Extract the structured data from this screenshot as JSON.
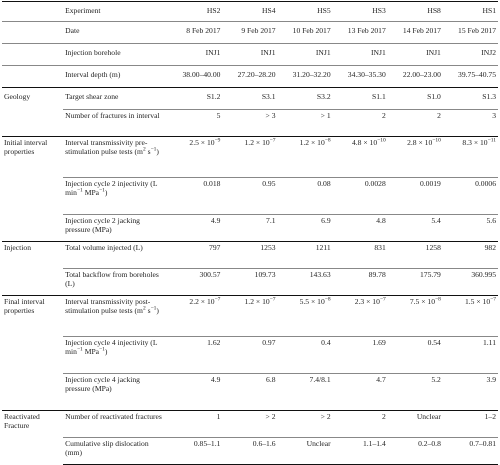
{
  "columns": [
    "HS2",
    "HS4",
    "HS5",
    "HS3",
    "HS8",
    "HS1"
  ],
  "rows": [
    {
      "id": "experiment",
      "category": "",
      "param": "Experiment",
      "values": [
        "HS2",
        "HS4",
        "HS5",
        "HS3",
        "HS8",
        "HS1"
      ]
    },
    {
      "id": "date",
      "category": "",
      "param": "Date",
      "values": [
        "8 Feb 2017",
        "9 Feb 2017",
        "10 Feb 2017",
        "13 Feb 2017",
        "14 Feb 2017",
        "15 Feb 2017"
      ]
    },
    {
      "id": "borehole",
      "category": "",
      "param": "Injection borehole",
      "values": [
        "INJ1",
        "INJ1",
        "INJ1",
        "INJ1",
        "INJ1",
        "INJ2"
      ]
    },
    {
      "id": "depth",
      "category": "",
      "param": "Interval depth (m)",
      "values": [
        "38.00–40.00",
        "27.20–28.20",
        "31.20–32.20",
        "34.30–35.30",
        "22.00–23.00",
        "39.75–40.75"
      ]
    },
    {
      "id": "shear_zone",
      "category": "Geology",
      "param": "Target shear zone",
      "values": [
        "S1.2",
        "S3.1",
        "S3.2",
        "S1.1",
        "S1.0",
        "S1.3"
      ]
    },
    {
      "id": "fractures",
      "category": "",
      "param": "Number of fractures in interval",
      "values": [
        "5",
        "> 3",
        "> 1",
        "2",
        "2",
        "3"
      ]
    },
    {
      "id": "init_transmissivity",
      "category": "Initial interval properties",
      "param_html": "Interval transmissivity pre-stimulation pulse tests (m<sup>2</sup> s<sup>−1</sup>)",
      "values_html": [
        "2.5 × 10<sup>−9</sup>",
        "1.2 × 10<sup>−7</sup>",
        "1.2 × 10<sup>−8</sup>",
        "4.8 × 10<sup>−10</sup>",
        "2.8 × 10<sup>−10</sup>",
        "8.3 × 10<sup>−11</sup>"
      ]
    },
    {
      "id": "cycle2_injectivity",
      "category": "",
      "param_html": "Injection cycle 2 injectivity (L min<sup>−1</sup> MPa<sup>−1</sup>)",
      "values": [
        "0.018",
        "0.95",
        "0.08",
        "0.0028",
        "0.0019",
        "0.0006"
      ]
    },
    {
      "id": "cycle2_jacking",
      "category": "",
      "param": "Injection cycle 2 jacking pressure (MPa)",
      "values": [
        "4.9",
        "7.1",
        "6.9",
        "4.8",
        "5.4",
        "5.6"
      ]
    },
    {
      "id": "volume_injected",
      "category": "Injection",
      "param": "Total volume injected (L)",
      "values": [
        "797",
        "1253",
        "1211",
        "831",
        "1258",
        "982"
      ]
    },
    {
      "id": "backflow",
      "category": "",
      "param": "Total backflow from boreholes (L)",
      "values": [
        "300.57",
        "109.73",
        "143.63",
        "89.78",
        "175.79",
        "360.995"
      ]
    },
    {
      "id": "final_transmissivity",
      "category": "Final interval properties",
      "param_html": "Interval transmissivity post-stimulation pulse tests (m<sup>2</sup> s<sup>−1</sup>)",
      "values_html": [
        "2.2 × 10<sup>−7</sup>",
        "1.2 × 10<sup>−7</sup>",
        "5.5 × 10<sup>−8</sup>",
        "2.3 × 10<sup>−7</sup>",
        "7.5 × 10<sup>−8</sup>",
        "1.5 × 10<sup>−7</sup>"
      ]
    },
    {
      "id": "cycle4_injectivity",
      "category": "",
      "param_html": "Injection cycle 4 injectivity (L min<sup>−1</sup> MPa<sup>−1</sup>)",
      "values": [
        "1.62",
        "0.97",
        "0.4",
        "1.69",
        "0.54",
        "1.11"
      ]
    },
    {
      "id": "cycle4_jacking",
      "category": "",
      "param": "Injection cycle 4 jacking pressure (MPa)",
      "values": [
        "4.9",
        "6.8",
        "7.4/8.1",
        "4.7",
        "5.2",
        "3.9"
      ]
    },
    {
      "id": "reactivated",
      "category": "Reactivated Fracture",
      "param": "Number of reactivated fractures",
      "values": [
        "1",
        "> 2",
        "> 2",
        "2",
        "Unclear",
        "1–2"
      ]
    },
    {
      "id": "slip",
      "category": "",
      "param": "Cumulative slip dislocation (mm)",
      "values": [
        "0.85–1.1",
        "0.6–1.6",
        "Unclear",
        "1.1–1.4",
        "0.2–0.8",
        "0.7–0.81"
      ]
    }
  ]
}
